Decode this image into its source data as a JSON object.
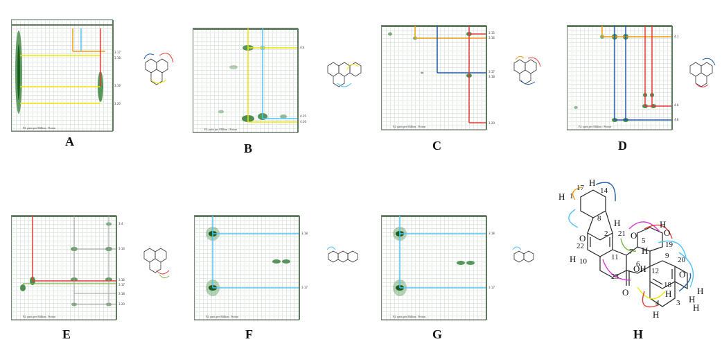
{
  "panels": [
    "A",
    "B",
    "C",
    "D",
    "E",
    "F",
    "G",
    "H"
  ],
  "spec_labels": {
    "A": [
      "3.17",
      "3.18",
      "3.19",
      "3.20"
    ],
    "B": [
      "4.4",
      "4.15",
      "4.16"
    ],
    "C": [
      "3.15",
      "3.16",
      "3.17",
      "3.18",
      "3.20"
    ],
    "D": [
      "4.1",
      "4.6",
      "4.8"
    ],
    "E": [
      "3.4",
      "3.14",
      "3.16",
      "3.17",
      "3.18",
      "3.20"
    ],
    "F": [
      "3.18",
      "3.17"
    ],
    "G": [
      "3.18",
      "3.17"
    ]
  },
  "structure_numbers": [
    "1",
    "17",
    "14",
    "8",
    "22",
    "10",
    "2",
    "21",
    "5",
    "7",
    "6",
    "19",
    "11",
    "23",
    "12",
    "9",
    "20",
    "18",
    "4",
    "3"
  ],
  "structure_atoms": {
    "H": "H",
    "O": "O",
    "OH": "OH"
  },
  "colors": {
    "green": "#2e7d32",
    "yellow": "#f2e600",
    "cyan": "#4fc3f7",
    "red": "#e53935",
    "orange": "#f39c12",
    "blue": "#1e5aa8",
    "magenta": "#d63ad6",
    "grey": "#9e9e9e"
  }
}
